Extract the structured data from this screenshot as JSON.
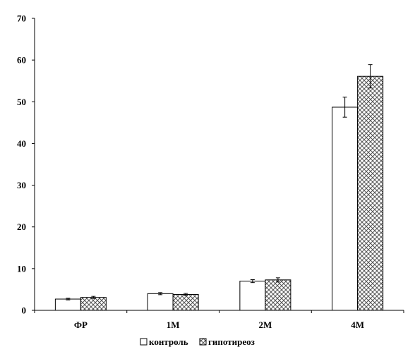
{
  "chart_data": {
    "type": "bar",
    "categories": [
      "ФР",
      "1М",
      "2М",
      "4М"
    ],
    "series": [
      {
        "name": "контроль",
        "values": [
          2.7,
          4.0,
          7.0,
          48.7
        ],
        "errors": [
          0.2,
          0.25,
          0.35,
          2.4
        ],
        "fill": "#ffffff"
      },
      {
        "name": "гипотиреоз",
        "values": [
          3.1,
          3.8,
          7.3,
          56.1
        ],
        "errors": [
          0.25,
          0.25,
          0.5,
          2.8
        ],
        "fill": "hatch"
      }
    ],
    "ylim": [
      0,
      70
    ],
    "yticks": [
      "0",
      "10",
      "20",
      "30",
      "40",
      "50",
      "60",
      "70"
    ],
    "grid": false,
    "legend_position": "bottom-center",
    "colors": {
      "bar_stroke": "#000000",
      "hatch": "#555555"
    }
  }
}
